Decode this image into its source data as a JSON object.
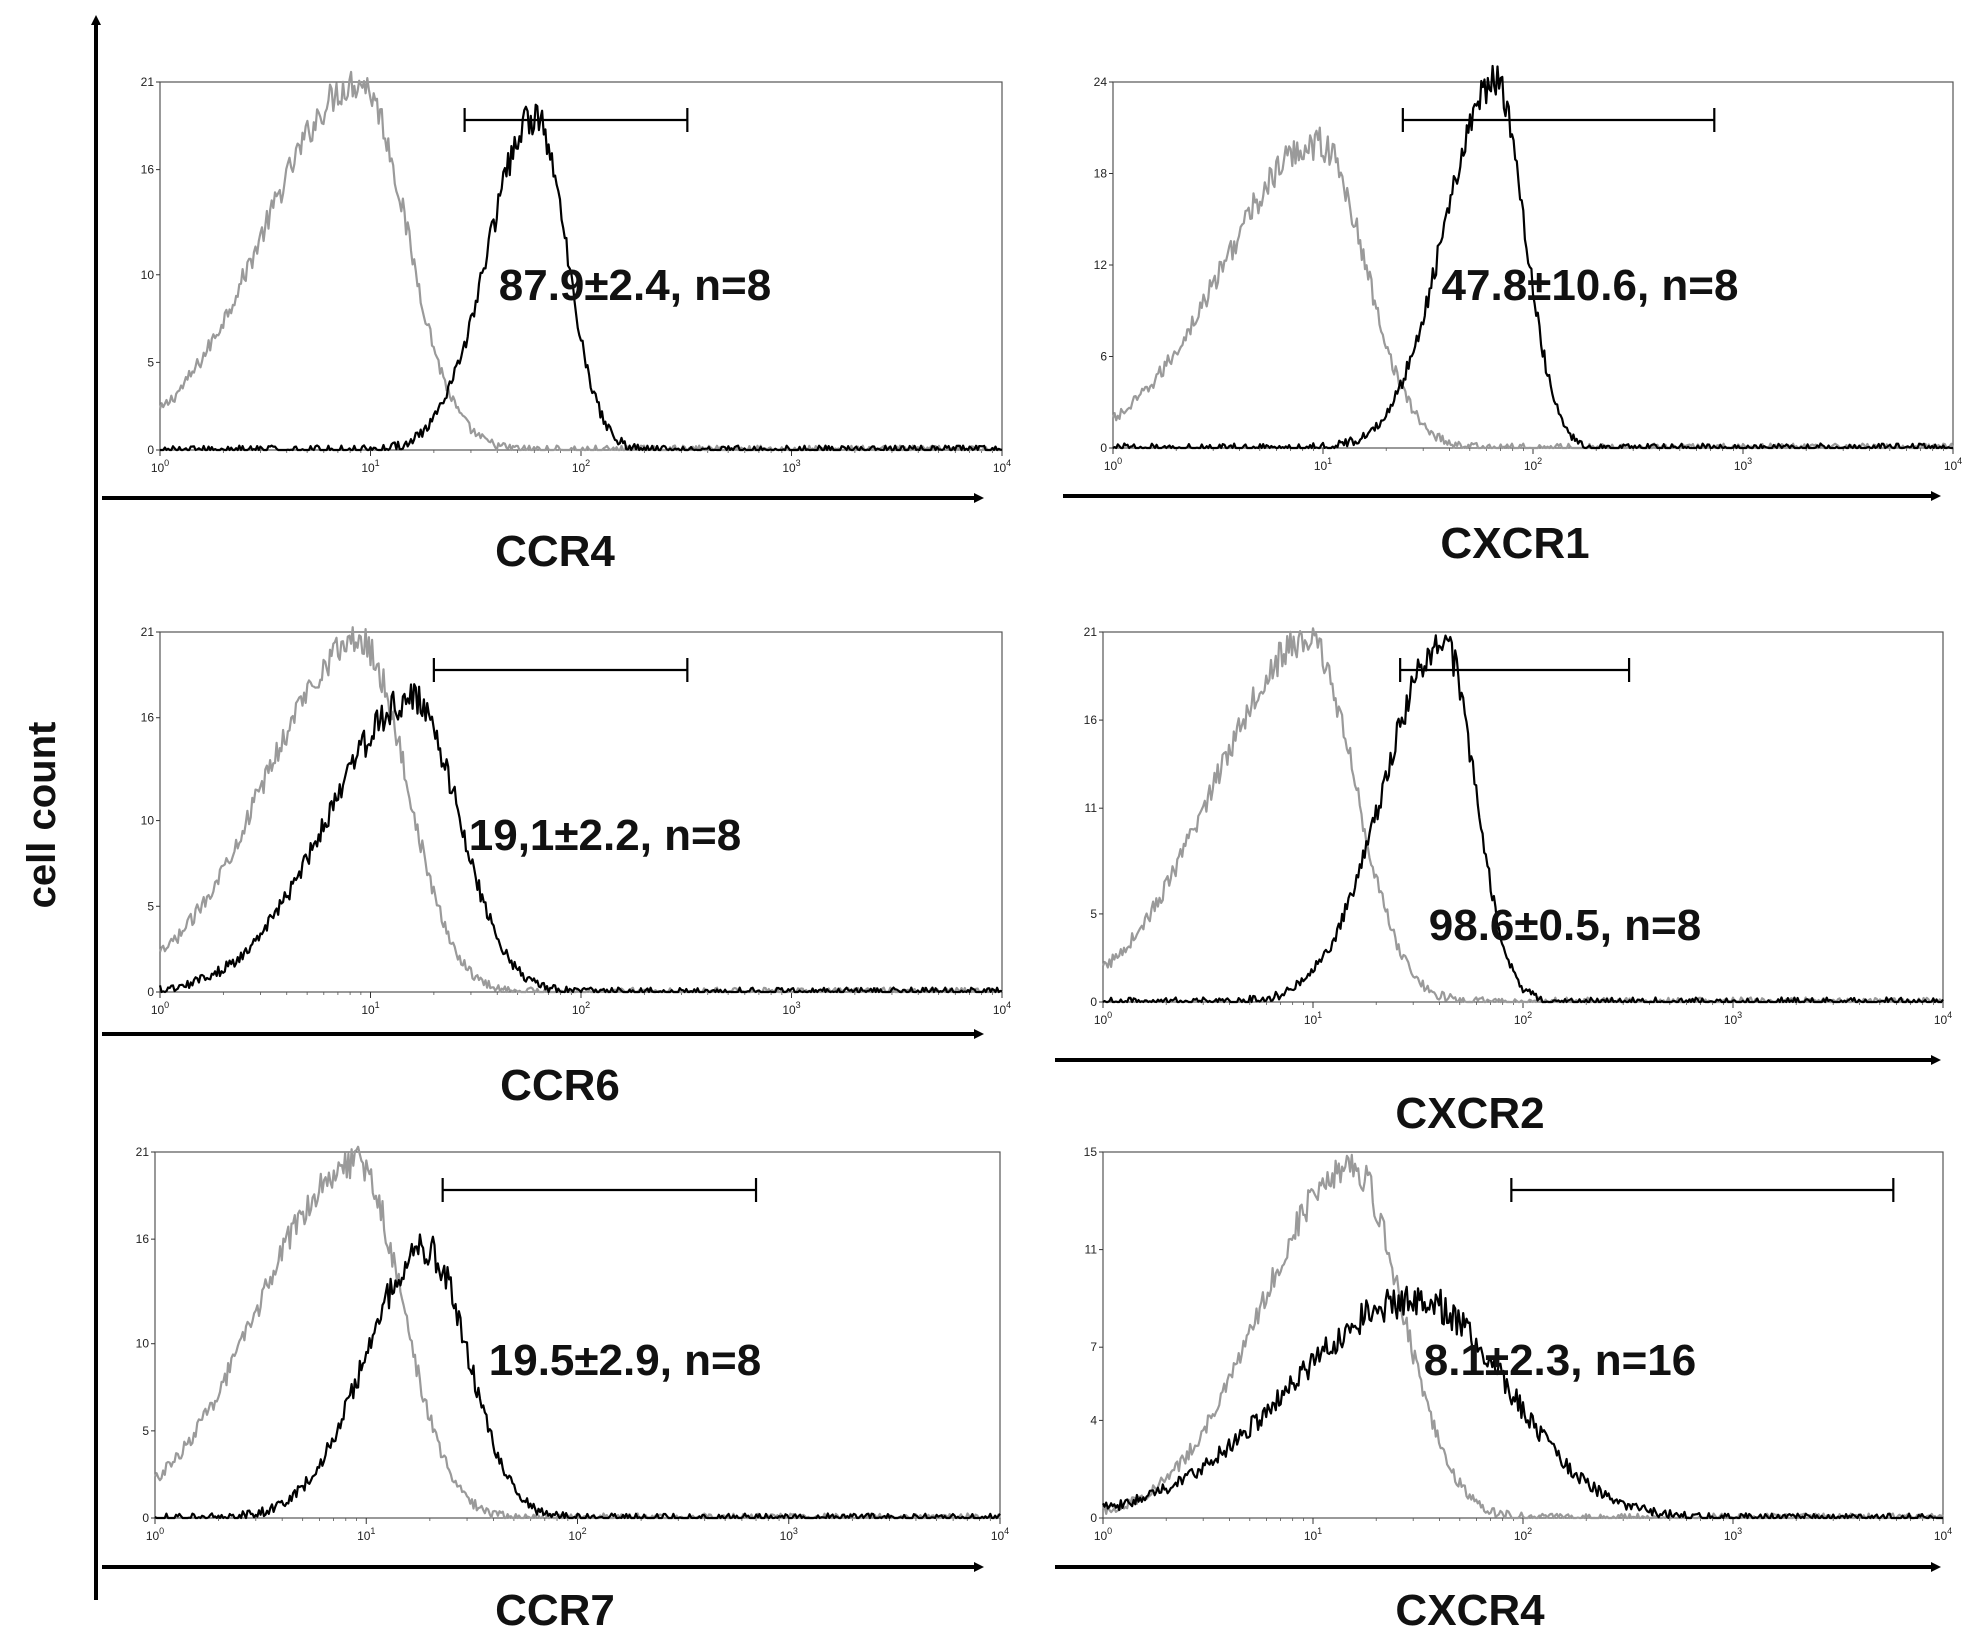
{
  "y_axis_label": "cell count",
  "colors": {
    "isotype": "#9a9a9a",
    "stained": "#000000",
    "axis": "#000000"
  },
  "chart_data": [
    {
      "type": "histogram",
      "xlabel": "CCR4",
      "xscale": "log",
      "xlim": [
        1,
        10000
      ],
      "yticks": [
        0,
        5,
        10,
        16,
        21
      ],
      "ylim": [
        0,
        21
      ],
      "annotation": "87.9±2.4, n=8",
      "gate": [
        28,
        320
      ],
      "series": [
        {
          "role": "isotype",
          "peak_log": 0.95,
          "peak": 21,
          "sigma_left": 0.45,
          "sigma_right": 0.22
        },
        {
          "role": "stained",
          "peak_log": 1.78,
          "peak": 19,
          "sigma_left": 0.22,
          "sigma_right": 0.15
        }
      ]
    },
    {
      "type": "histogram",
      "xlabel": "CXCR1",
      "xscale": "log",
      "xlim": [
        1,
        10000
      ],
      "yticks": [
        0,
        6,
        12,
        18,
        24
      ],
      "ylim": [
        0,
        24
      ],
      "annotation": "47.8±10.6, n=8",
      "gate": [
        24,
        730
      ],
      "series": [
        {
          "role": "isotype",
          "peak_log": 0.98,
          "peak": 20,
          "sigma_left": 0.45,
          "sigma_right": 0.22
        },
        {
          "role": "stained",
          "peak_log": 1.82,
          "peak": 24,
          "sigma_left": 0.24,
          "sigma_right": 0.14
        }
      ]
    },
    {
      "type": "histogram",
      "xlabel": "CCR6",
      "xscale": "log",
      "xlim": [
        1,
        10000
      ],
      "yticks": [
        0,
        5,
        10,
        16,
        21
      ],
      "ylim": [
        0,
        21
      ],
      "annotation": "19,1±2.2, n=8",
      "gate": [
        20,
        320
      ],
      "series": [
        {
          "role": "isotype",
          "peak_log": 0.95,
          "peak": 20.5,
          "sigma_left": 0.45,
          "sigma_right": 0.22
        },
        {
          "role": "stained",
          "peak_log": 1.2,
          "peak": 17,
          "sigma_left": 0.4,
          "sigma_right": 0.22
        }
      ]
    },
    {
      "type": "histogram",
      "xlabel": "CXCR2",
      "xscale": "log",
      "xlim": [
        1,
        10000
      ],
      "yticks": [
        0,
        5,
        11,
        16,
        21
      ],
      "ylim": [
        0,
        21
      ],
      "annotation": "98.6±0.5, n=8",
      "gate": [
        26,
        320
      ],
      "series": [
        {
          "role": "isotype",
          "peak_log": 0.98,
          "peak": 20.5,
          "sigma_left": 0.45,
          "sigma_right": 0.22
        },
        {
          "role": "stained",
          "peak_log": 1.62,
          "peak": 20.5,
          "sigma_left": 0.28,
          "sigma_right": 0.15
        }
      ]
    },
    {
      "type": "histogram",
      "xlabel": "CCR7",
      "xscale": "log",
      "xlim": [
        1,
        10000
      ],
      "yticks": [
        0,
        5,
        10,
        16,
        21
      ],
      "ylim": [
        0,
        21
      ],
      "annotation": "19.5±2.9, n=8",
      "gate": [
        23,
        700
      ],
      "series": [
        {
          "role": "isotype",
          "peak_log": 0.95,
          "peak": 20.5,
          "sigma_left": 0.45,
          "sigma_right": 0.22
        },
        {
          "role": "stained",
          "peak_log": 1.28,
          "peak": 15.5,
          "sigma_left": 0.28,
          "sigma_right": 0.2
        }
      ]
    },
    {
      "type": "histogram",
      "xlabel": "CXCR4",
      "xscale": "log",
      "xlim": [
        1,
        10000
      ],
      "yticks": [
        0,
        4,
        7,
        11,
        15
      ],
      "ylim": [
        0,
        15
      ],
      "annotation": "8.1±2.3, n=16",
      "gate": [
        88,
        5800
      ],
      "series": [
        {
          "role": "isotype",
          "peak_log": 1.18,
          "peak": 14.5,
          "sigma_left": 0.42,
          "sigma_right": 0.24
        },
        {
          "role": "stained",
          "peak_log": 1.5,
          "peak": 9,
          "sigma_left": 0.6,
          "sigma_right": 0.42
        }
      ]
    }
  ]
}
